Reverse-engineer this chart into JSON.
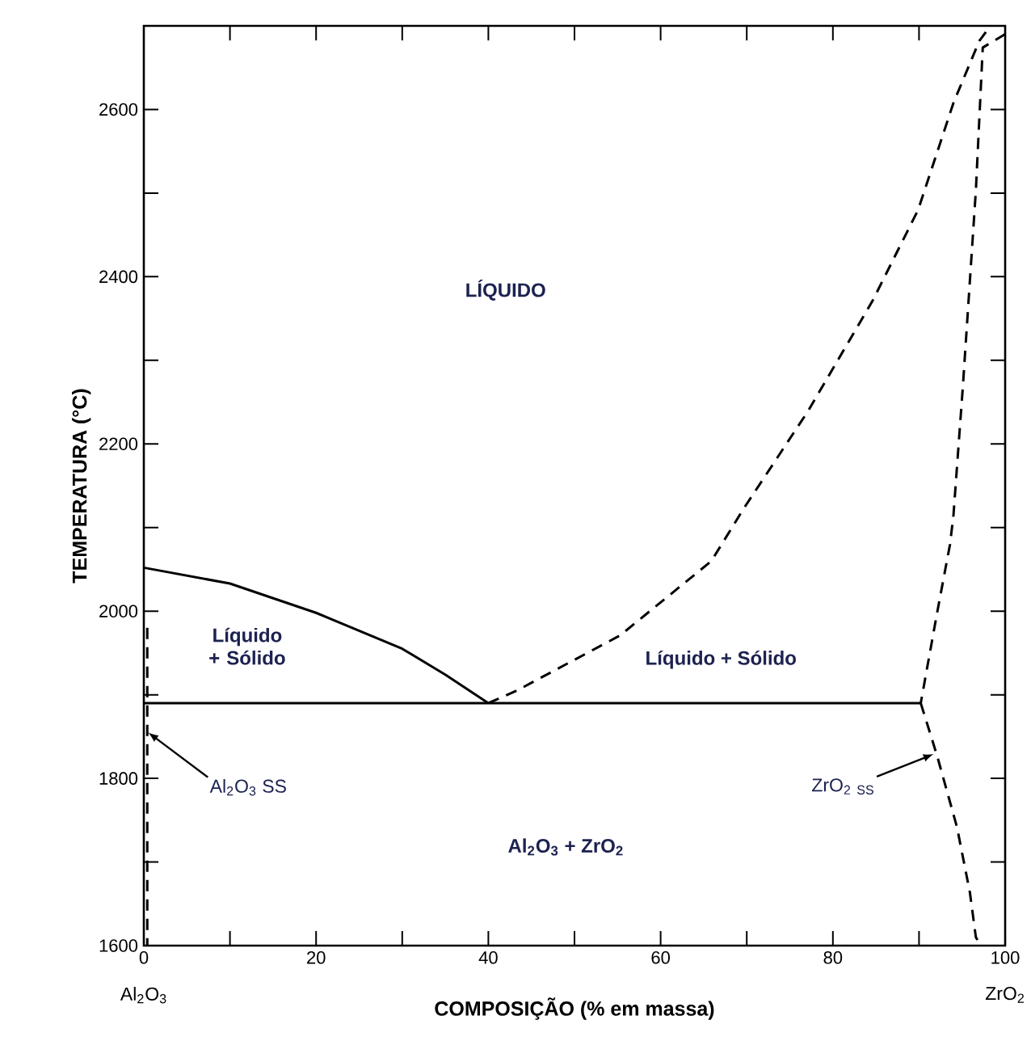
{
  "chart_data": {
    "type": "line",
    "xlabel": "COMPOSIÇÃO (% em massa)",
    "ylabel": "TEMPERATURA (°C)",
    "xlim": [
      0,
      100
    ],
    "ylim": [
      1600,
      2700
    ],
    "xticks": [
      0,
      {
        "value": 10,
        "label": null
      },
      20,
      {
        "value": 30,
        "label": null
      },
      40,
      {
        "value": 50,
        "label": null
      },
      60,
      {
        "value": 70,
        "label": null
      },
      80,
      {
        "value": 90,
        "label": null
      },
      100
    ],
    "yticks": [
      1600,
      {
        "value": 1700,
        "label": null
      },
      1800,
      {
        "value": 1900,
        "label": null
      },
      2000,
      {
        "value": 2100,
        "label": null
      },
      2200,
      {
        "value": 2300,
        "label": null
      },
      2400,
      {
        "value": 2500,
        "label": null
      },
      2600
    ],
    "marker": "none",
    "series": [
      {
        "color": "#000000",
        "line_style": "solid",
        "x": [
          0,
          10,
          20,
          30,
          35,
          40
        ],
        "values": [
          2052,
          2033,
          1998,
          1955,
          1924,
          1890
        ]
      },
      {
        "color": "#000000",
        "line_style": "solid",
        "x": [
          0,
          90.2
        ],
        "values": [
          1890,
          1890
        ]
      },
      {
        "color": "#000000",
        "line_style": "dashed",
        "x": [
          40,
          43.3,
          55.3,
          65.9,
          69.6,
          77.1,
          84.6,
          89.9,
          94,
          97,
          98.3
        ],
        "values": [
          1890,
          1905,
          1971,
          2060,
          2122,
          2239,
          2371,
          2480,
          2608,
          2682,
          2700
        ]
      },
      {
        "color": "#000000",
        "line_style": "dashed",
        "x": [
          100,
          97.4,
          96.6,
          95.1,
          94,
          93.6,
          92.1,
          90.2
        ],
        "values": [
          2690,
          2674,
          2503,
          2270,
          2115,
          2080,
          1998,
          1890
        ]
      },
      {
        "color": "#000000",
        "line_style": "dashed",
        "x": [
          90.2,
          92.1,
          94.4,
          95.9,
          96.6,
          97.2
        ],
        "values": [
          1890,
          1827,
          1742,
          1664,
          1610,
          1600
        ]
      },
      {
        "color": "#000000",
        "line_style": "dashed",
        "x": [
          0.4,
          0.4
        ],
        "values": [
          1980,
          1600
        ]
      }
    ],
    "annotations": [
      "LÍQUIDO",
      "Líquido + Sólido",
      "Líquido + Sólido",
      "Al$_{2}$O$_{3}$ +  ZrO$_{2}$",
      {
        "text": "Al$_{2}$O$_{3}$ SS",
        "x": 0.5,
        "y": 1855
      },
      {
        "text": "ZrO$_{2}$ $_{SS}$",
        "x": 91.7,
        "y": 1829
      },
      "Al$_{2}$O$_{3}$",
      "ZrO$_{2}$"
    ]
  }
}
